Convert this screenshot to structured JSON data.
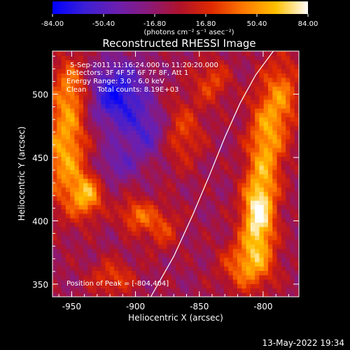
{
  "colorbar": {
    "ticks": [
      "-84.00",
      "-50.40",
      "-16.80",
      "16.80",
      "50.40",
      "84.00"
    ],
    "unit_label": "(photons cm⁻² s⁻¹ asec⁻²)",
    "range": [
      -84,
      84
    ],
    "colormap": [
      "#0000ff",
      "#3b1fd6",
      "#6a1fb0",
      "#8a1a7a",
      "#b0122a",
      "#e02a00",
      "#ff7a00",
      "#ffc000",
      "#ffffff"
    ]
  },
  "footer": {
    "timestamp": "13-May-2022 19:34"
  },
  "chart_data": {
    "type": "heatmap",
    "title": "Reconstructed RHESSI Image",
    "xlabel": "Heliocentric X (arcsec)",
    "ylabel": "Heliocentric Y (arcsec)",
    "xlim": [
      -965,
      -772
    ],
    "ylim": [
      340,
      534
    ],
    "xticks": [
      -950,
      -900,
      -850,
      -800
    ],
    "xtick_labels": [
      "-950",
      "-900",
      "-850",
      "-800"
    ],
    "yticks": [
      350,
      400,
      450,
      500
    ],
    "ytick_labels": [
      "350",
      "400",
      "450",
      "500"
    ],
    "annotations": [
      "5-Sep-2011 11:16:24.000 to 11:20:20.000",
      "Detectors: 3F 4F 5F 6F 7F 8F, Att 1",
      "Energy Range: 3.0 - 6.0 keV",
      "Clean     Total counts: 8.19E+03"
    ],
    "peak_label": "Position of Peak = [-804,404]",
    "peak": [
      -804,
      404
    ],
    "limb_curve": {
      "x": [
        -888,
        -870,
        -855,
        -842,
        -830,
        -818,
        -806,
        -792
      ],
      "y": [
        340,
        372,
        405,
        436,
        466,
        493,
        515,
        534
      ]
    },
    "blobs": [
      {
        "x": -804,
        "y": 404,
        "sx": 9,
        "sy": 22,
        "amp": 90
      },
      {
        "x": -798,
        "y": 460,
        "sx": 10,
        "sy": 28,
        "amp": 60
      },
      {
        "x": -812,
        "y": 365,
        "sx": 14,
        "sy": 14,
        "amp": 55
      },
      {
        "x": -785,
        "y": 500,
        "sx": 10,
        "sy": 22,
        "amp": 45
      },
      {
        "x": -955,
        "y": 455,
        "sx": 12,
        "sy": 30,
        "amp": 65
      },
      {
        "x": -938,
        "y": 420,
        "sx": 9,
        "sy": 12,
        "amp": 60
      },
      {
        "x": -950,
        "y": 505,
        "sx": 10,
        "sy": 18,
        "amp": 45
      },
      {
        "x": -900,
        "y": 405,
        "sx": 9,
        "sy": 9,
        "amp": 45
      },
      {
        "x": -918,
        "y": 355,
        "sx": 12,
        "sy": 10,
        "amp": 35
      },
      {
        "x": -865,
        "y": 470,
        "sx": 12,
        "sy": 18,
        "amp": 40
      },
      {
        "x": -880,
        "y": 395,
        "sx": 10,
        "sy": 12,
        "amp": 35
      },
      {
        "x": -840,
        "y": 510,
        "sx": 10,
        "sy": 12,
        "amp": 35
      },
      {
        "x": -915,
        "y": 500,
        "sx": 16,
        "sy": 18,
        "amp": -65
      },
      {
        "x": -890,
        "y": 470,
        "sx": 14,
        "sy": 14,
        "amp": -40
      },
      {
        "x": -915,
        "y": 445,
        "sx": 12,
        "sy": 10,
        "amp": -30
      }
    ]
  }
}
